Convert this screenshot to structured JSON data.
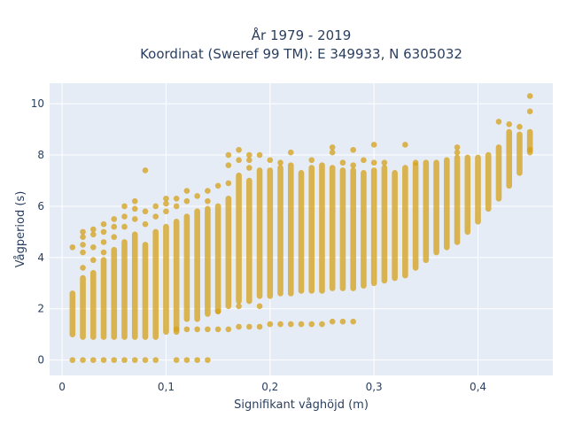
{
  "chart_data": {
    "type": "scatter",
    "title": [
      "År 1979 - 2019",
      "Koordinat (Sweref 99 TM): E 349933, N 6305032"
    ],
    "xlabel": "Signifikant våghöjd (m)",
    "ylabel": "Vågperiod (s)",
    "xlim": [
      -0.012,
      0.472
    ],
    "ylim": [
      -0.6,
      10.8
    ],
    "xticks": [
      0,
      0.1,
      0.2,
      0.3,
      0.4
    ],
    "xticklabels": [
      "0",
      "0,1",
      "0,2",
      "0,3",
      "0,4"
    ],
    "yticks": [
      0,
      2,
      4,
      6,
      8,
      10
    ],
    "yticklabels": [
      "0",
      "2",
      "4",
      "6",
      "8",
      "10"
    ],
    "grid": true,
    "legend": "none",
    "colors": {
      "marker": "#d4a017",
      "plot_bg": "#e5ecf6",
      "grid": "#ffffff",
      "text": "#2a3f5f"
    },
    "marker_opacity": 0.75,
    "x_step": 0.01,
    "columns": [
      {
        "x": 0.01,
        "ymin": 1.0,
        "ymax": 2.6,
        "extra": [
          0,
          4.4
        ]
      },
      {
        "x": 0.02,
        "ymin": 0.9,
        "ymax": 3.2,
        "extra": [
          0,
          3.6,
          4.2,
          4.5,
          4.8,
          5.0
        ]
      },
      {
        "x": 0.03,
        "ymin": 0.9,
        "ymax": 3.4,
        "extra": [
          0,
          3.9,
          4.4,
          4.9,
          5.1
        ]
      },
      {
        "x": 0.04,
        "ymin": 0.9,
        "ymax": 3.9,
        "extra": [
          0,
          4.2,
          4.6,
          5.0,
          5.3
        ]
      },
      {
        "x": 0.05,
        "ymin": 0.9,
        "ymax": 4.3,
        "extra": [
          0,
          4.8,
          5.2,
          5.5
        ]
      },
      {
        "x": 0.06,
        "ymin": 0.9,
        "ymax": 4.6,
        "extra": [
          0,
          5.2,
          5.6,
          6.0
        ]
      },
      {
        "x": 0.07,
        "ymin": 0.9,
        "ymax": 4.9,
        "extra": [
          0,
          5.5,
          5.9,
          6.2
        ]
      },
      {
        "x": 0.08,
        "ymin": 0.9,
        "ymax": 4.5,
        "extra": [
          0,
          5.3,
          5.8,
          7.4
        ]
      },
      {
        "x": 0.09,
        "ymin": 0.9,
        "ymax": 5.0,
        "extra": [
          0,
          5.6,
          6.0
        ]
      },
      {
        "x": 0.1,
        "ymin": 1.1,
        "ymax": 5.2,
        "extra": [
          5.8,
          6.1,
          6.3
        ]
      },
      {
        "x": 0.11,
        "ymin": 1.1,
        "ymax": 5.4,
        "extra": [
          0,
          1.2,
          6.0,
          6.3
        ]
      },
      {
        "x": 0.12,
        "ymin": 1.6,
        "ymax": 5.6,
        "extra": [
          0,
          1.2,
          6.2,
          6.6
        ]
      },
      {
        "x": 0.13,
        "ymin": 1.6,
        "ymax": 5.8,
        "extra": [
          0,
          1.2,
          6.4
        ]
      },
      {
        "x": 0.14,
        "ymin": 1.8,
        "ymax": 5.9,
        "extra": [
          0,
          1.2,
          6.2,
          6.6
        ]
      },
      {
        "x": 0.15,
        "ymin": 1.9,
        "ymax": 6.0,
        "extra": [
          1.2,
          1.9,
          6.8
        ]
      },
      {
        "x": 0.16,
        "ymin": 2.1,
        "ymax": 6.3,
        "extra": [
          1.2,
          6.9,
          7.6,
          8.0
        ]
      },
      {
        "x": 0.17,
        "ymin": 2.3,
        "ymax": 7.2,
        "extra": [
          1.3,
          2.1,
          7.8,
          8.2
        ]
      },
      {
        "x": 0.18,
        "ymin": 2.3,
        "ymax": 7.0,
        "extra": [
          1.3,
          7.5,
          7.8,
          8.0
        ]
      },
      {
        "x": 0.19,
        "ymin": 2.5,
        "ymax": 7.4,
        "extra": [
          1.3,
          2.1,
          8.0
        ]
      },
      {
        "x": 0.2,
        "ymin": 2.5,
        "ymax": 7.4,
        "extra": [
          1.4,
          7.8
        ]
      },
      {
        "x": 0.21,
        "ymin": 2.6,
        "ymax": 7.5,
        "extra": [
          1.4,
          7.7
        ]
      },
      {
        "x": 0.22,
        "ymin": 2.6,
        "ymax": 7.6,
        "extra": [
          1.4,
          8.1
        ]
      },
      {
        "x": 0.23,
        "ymin": 2.7,
        "ymax": 7.3,
        "extra": [
          1.4
        ]
      },
      {
        "x": 0.24,
        "ymin": 2.7,
        "ymax": 7.5,
        "extra": [
          1.4,
          7.8
        ]
      },
      {
        "x": 0.25,
        "ymin": 2.7,
        "ymax": 7.6,
        "extra": [
          1.4
        ]
      },
      {
        "x": 0.26,
        "ymin": 2.8,
        "ymax": 7.5,
        "extra": [
          1.5,
          8.1,
          8.3
        ]
      },
      {
        "x": 0.27,
        "ymin": 2.8,
        "ymax": 7.4,
        "extra": [
          1.5,
          7.7
        ]
      },
      {
        "x": 0.28,
        "ymin": 2.8,
        "ymax": 7.4,
        "extra": [
          1.5,
          7.6,
          8.2
        ]
      },
      {
        "x": 0.29,
        "ymin": 2.9,
        "ymax": 7.3,
        "extra": [
          7.8
        ]
      },
      {
        "x": 0.3,
        "ymin": 3.0,
        "ymax": 7.4,
        "extra": [
          7.7,
          8.4
        ]
      },
      {
        "x": 0.31,
        "ymin": 3.1,
        "ymax": 7.5,
        "extra": [
          7.7
        ]
      },
      {
        "x": 0.32,
        "ymin": 3.2,
        "ymax": 7.3,
        "extra": []
      },
      {
        "x": 0.33,
        "ymin": 3.3,
        "ymax": 7.5,
        "extra": [
          8.4
        ]
      },
      {
        "x": 0.34,
        "ymin": 3.6,
        "ymax": 7.6,
        "extra": [
          7.7
        ]
      },
      {
        "x": 0.35,
        "ymin": 3.9,
        "ymax": 7.7,
        "extra": []
      },
      {
        "x": 0.36,
        "ymin": 4.2,
        "ymax": 7.7,
        "extra": []
      },
      {
        "x": 0.37,
        "ymin": 4.4,
        "ymax": 7.8,
        "extra": []
      },
      {
        "x": 0.38,
        "ymin": 4.6,
        "ymax": 7.9,
        "extra": [
          8.1,
          8.3
        ]
      },
      {
        "x": 0.39,
        "ymin": 5.0,
        "ymax": 7.9,
        "extra": []
      },
      {
        "x": 0.4,
        "ymin": 5.4,
        "ymax": 7.9,
        "extra": []
      },
      {
        "x": 0.41,
        "ymin": 5.9,
        "ymax": 8.0,
        "extra": []
      },
      {
        "x": 0.42,
        "ymin": 6.3,
        "ymax": 8.3,
        "extra": [
          9.3
        ]
      },
      {
        "x": 0.43,
        "ymin": 6.8,
        "ymax": 8.9,
        "extra": [
          9.2
        ]
      },
      {
        "x": 0.44,
        "ymin": 7.3,
        "ymax": 8.8,
        "extra": [
          9.1
        ]
      },
      {
        "x": 0.45,
        "ymin": 8.1,
        "ymax": 8.9,
        "extra": [
          8.2,
          9.7,
          10.3
        ]
      }
    ]
  }
}
